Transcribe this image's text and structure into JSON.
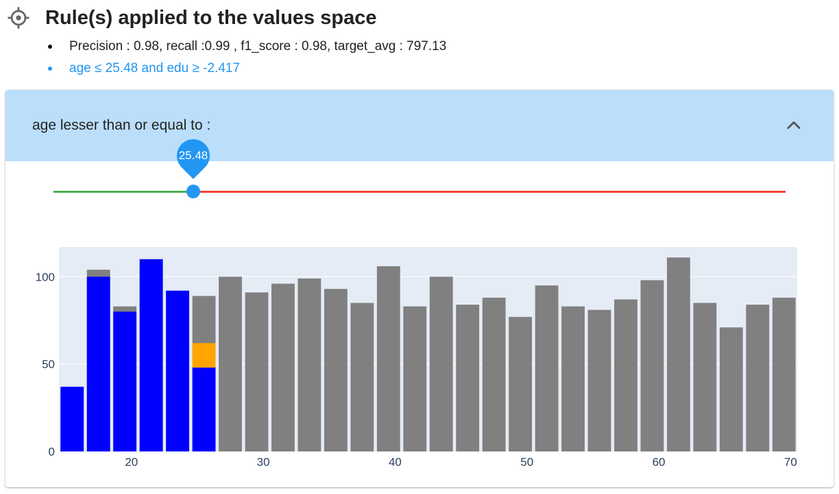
{
  "header": {
    "icon": "crosshair-icon",
    "title": "Rule(s) applied to the values space"
  },
  "info": {
    "metrics": "Precision : 0.98, recall :0.99 , f1_score : 0.98, target_avg : 797.13",
    "rule": "age ≤ 25.48 and edu ≥ -2.417"
  },
  "panel": {
    "title": "age lesser than or equal to :",
    "collapse_icon": "chevron-up-icon",
    "slider": {
      "value": 25.48,
      "value_label": "25.48",
      "min": 15,
      "max": 70,
      "left_color": "#4caf50",
      "right_color": "#f44336",
      "thumb_color": "#2196f3"
    }
  },
  "colors": {
    "accent": "#2196f3",
    "header_bg": "#bbdefb",
    "bar_selected": "#0000ff",
    "bar_partial": "#ffa500",
    "bar_other": "#808080",
    "plot_bg": "#e5ecf6"
  },
  "chart_data": {
    "type": "bar",
    "barmode": "overlay",
    "x": [
      15.5,
      17.5,
      19.5,
      21.5,
      23.5,
      25.5,
      27.5,
      29.5,
      31.5,
      33.5,
      35.5,
      37.5,
      39.5,
      41.5,
      43.5,
      45.5,
      47.5,
      49.5,
      51.5,
      53.5,
      55.5,
      57.5,
      59.5,
      61.5,
      63.5,
      65.5,
      67.5,
      69.5
    ],
    "series": [
      {
        "values": [
          37,
          104,
          83,
          110,
          92,
          89,
          100,
          91,
          96,
          99,
          93,
          85,
          106,
          83,
          100,
          84,
          88,
          77,
          95,
          83,
          81,
          87,
          98,
          111,
          85,
          71,
          84,
          88
        ]
      },
      {
        "values": [
          0,
          0,
          0,
          0,
          0,
          62,
          0,
          0,
          0,
          0,
          0,
          0,
          0,
          0,
          0,
          0,
          0,
          0,
          0,
          0,
          0,
          0,
          0,
          0,
          0,
          0,
          0,
          0
        ]
      },
      {
        "values": [
          37,
          100,
          80,
          110,
          92,
          48,
          0,
          0,
          0,
          0,
          0,
          0,
          0,
          0,
          0,
          0,
          0,
          0,
          0,
          0,
          0,
          0,
          0,
          0,
          0,
          0,
          0,
          0
        ]
      }
    ],
    "xlim": [
      14.5,
      70.5
    ],
    "ylim": [
      0,
      117
    ],
    "x_ticks": [
      20,
      30,
      40,
      50,
      60,
      70
    ],
    "y_ticks": [
      0,
      50,
      100
    ],
    "grid": true
  }
}
